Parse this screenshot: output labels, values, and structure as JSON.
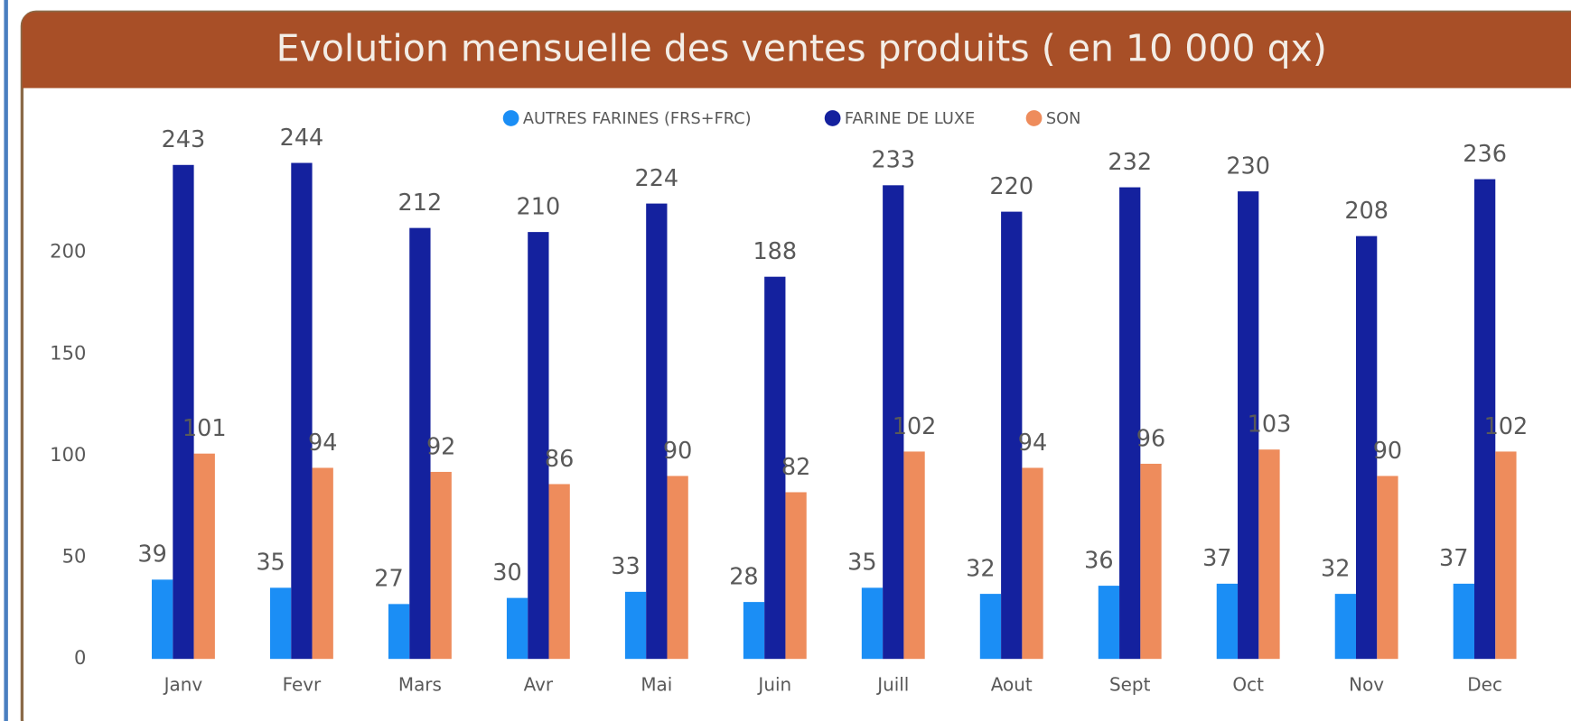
{
  "chart_data": {
    "type": "bar",
    "title": "Evolution mensuelle des ventes produits ( en 10 000 qx)",
    "categories": [
      "Janv",
      "Fevr",
      "Mars",
      "Avr",
      "Mai",
      "Juin",
      "Juill",
      "Aout",
      "Sept",
      "Oct",
      "Nov",
      "Dec"
    ],
    "series": [
      {
        "name": "AUTRES FARINES (FRS+FRC)",
        "color": "#1b8ef5",
        "values": [
          39,
          35,
          27,
          30,
          33,
          28,
          35,
          32,
          36,
          37,
          32,
          37
        ]
      },
      {
        "name": "FARINE DE LUXE",
        "color": "#14219e",
        "values": [
          243,
          244,
          212,
          210,
          224,
          188,
          233,
          220,
          232,
          230,
          208,
          236
        ]
      },
      {
        "name": "SON",
        "color": "#ee8c5c",
        "values": [
          101,
          94,
          92,
          86,
          90,
          82,
          102,
          94,
          96,
          103,
          90,
          102
        ]
      }
    ],
    "ylim": [
      0,
      250
    ],
    "yticks": [
      0,
      50,
      100,
      150,
      200
    ],
    "grid": false,
    "legend": "top"
  }
}
